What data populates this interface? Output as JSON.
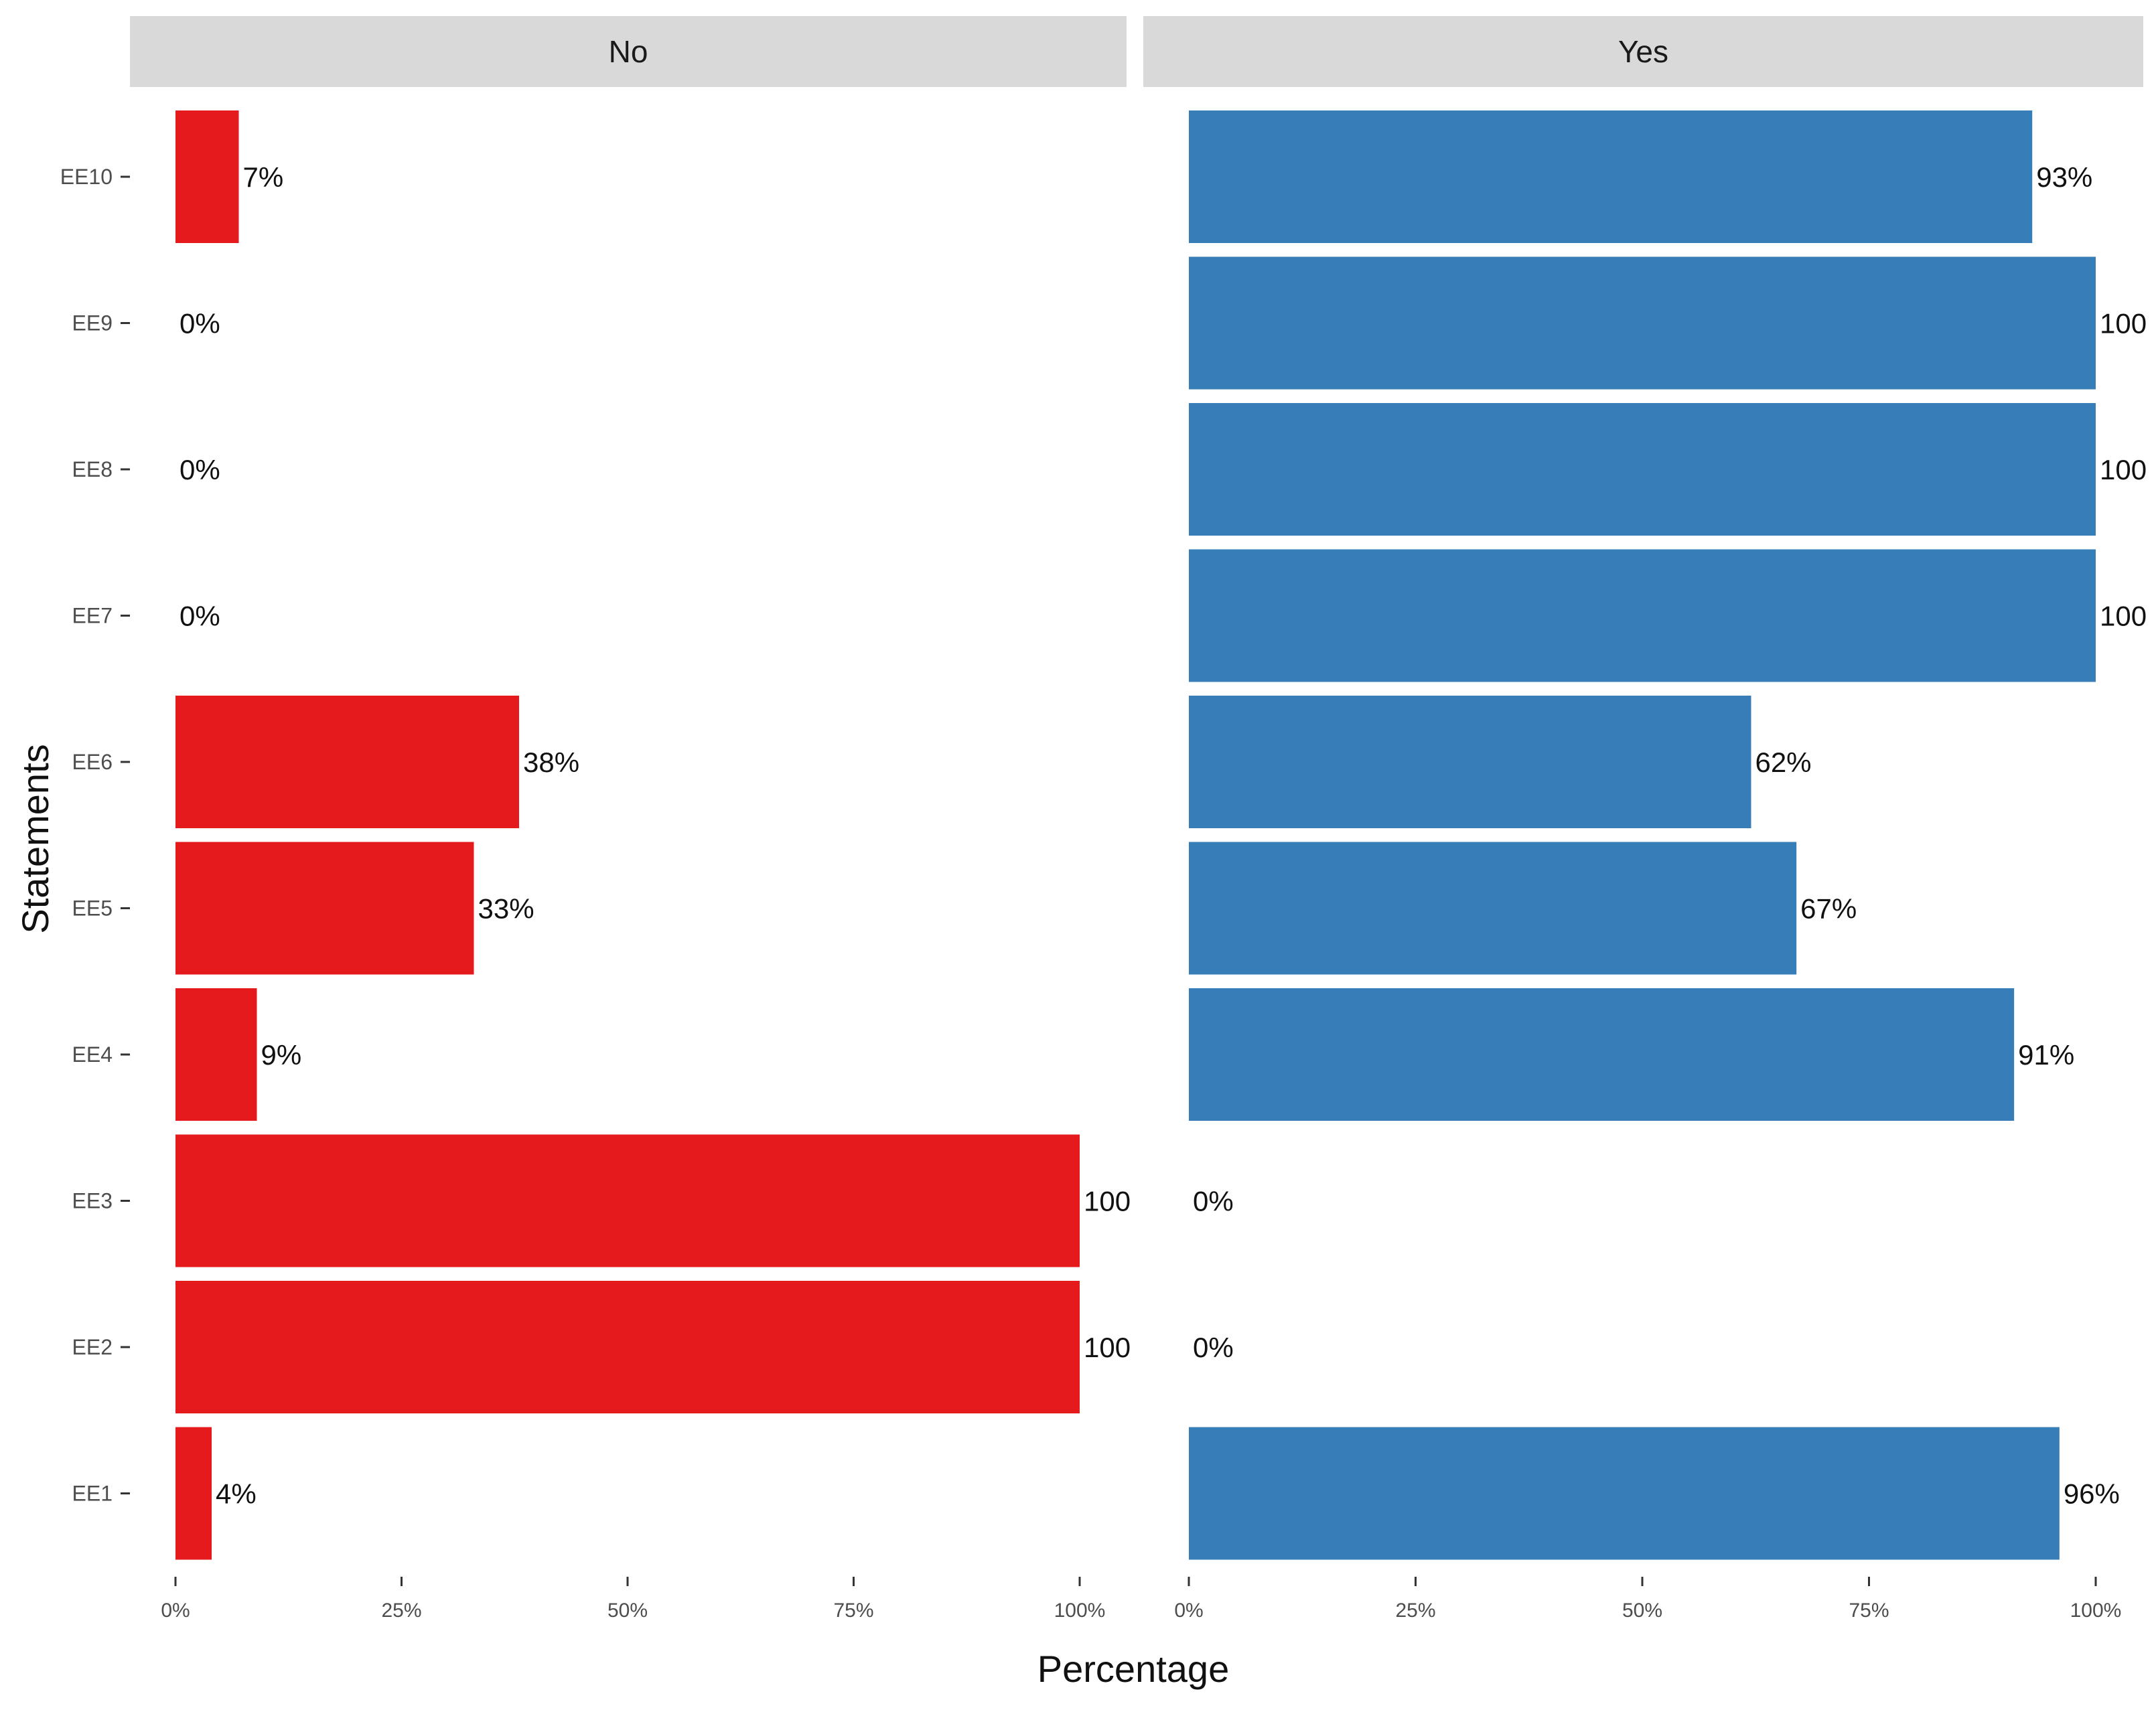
{
  "chart_data": {
    "type": "bar",
    "orientation": "horizontal",
    "title": "",
    "xlabel": "Percentage",
    "ylabel": "Statements",
    "xlim": [
      0,
      100
    ],
    "x_ticks": [
      "0%",
      "25%",
      "50%",
      "75%",
      "100%"
    ],
    "x_tick_values": [
      0,
      25,
      50,
      75,
      100
    ],
    "categories": [
      "EE10",
      "EE9",
      "EE8",
      "EE7",
      "EE6",
      "EE5",
      "EE4",
      "EE3",
      "EE2",
      "EE1"
    ],
    "grid": false,
    "legend": "none",
    "series": [
      {
        "name": "No",
        "color": "#e41a1c",
        "values": [
          7,
          0,
          0,
          0,
          38,
          33,
          9,
          100,
          100,
          4
        ],
        "labels": [
          "7%",
          "0%",
          "0%",
          "0%",
          "38%",
          "33%",
          "9%",
          "100",
          "100",
          "4%"
        ]
      },
      {
        "name": "Yes",
        "color": "#377eb8",
        "values": [
          93,
          100,
          100,
          100,
          62,
          67,
          91,
          0,
          0,
          96
        ],
        "labels": [
          "93%",
          "100",
          "100",
          "100",
          "62%",
          "67%",
          "91%",
          "0%",
          "0%",
          "96%"
        ]
      }
    ],
    "strip_color": "#d9d9d9"
  }
}
